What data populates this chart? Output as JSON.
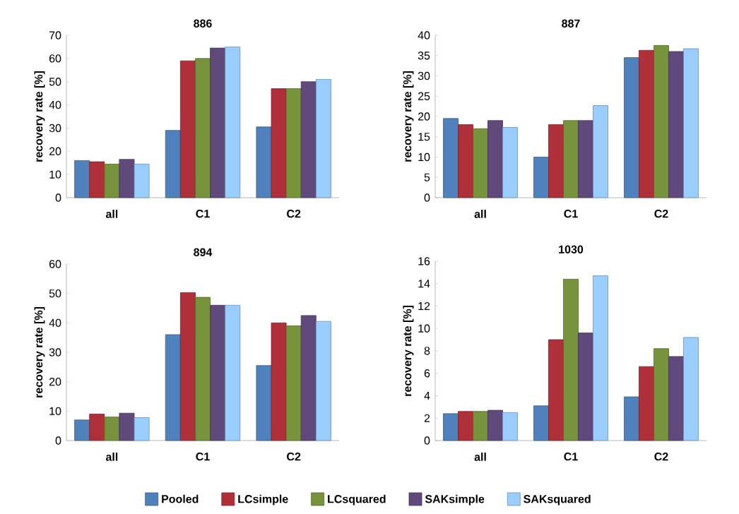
{
  "chart_data": [
    {
      "type": "bar",
      "title": "886",
      "ylabel": "recovery rate [%]",
      "categories": [
        "all",
        "C1",
        "C2"
      ],
      "ylim": [
        0,
        70
      ],
      "yticks": [
        0,
        10,
        20,
        30,
        40,
        50,
        60,
        70
      ],
      "series": [
        {
          "color": "#4f81bd",
          "values": [
            16,
            29,
            30.5
          ]
        },
        {
          "color": "#b0303a",
          "values": [
            15.5,
            59,
            47
          ]
        },
        {
          "color": "#77933c",
          "values": [
            14.5,
            60,
            47
          ]
        },
        {
          "color": "#604a7b",
          "values": [
            16.5,
            64.5,
            50
          ]
        },
        {
          "color": "#99ccff",
          "values": [
            14.5,
            65,
            51
          ]
        }
      ]
    },
    {
      "type": "bar",
      "title": "887",
      "ylabel": "recovery rate [%]",
      "categories": [
        "all",
        "C1",
        "C2"
      ],
      "ylim": [
        0,
        40
      ],
      "yticks": [
        0,
        5,
        10,
        15,
        20,
        25,
        30,
        35,
        40
      ],
      "series": [
        {
          "color": "#4f81bd",
          "values": [
            19.5,
            10,
            34.5
          ]
        },
        {
          "color": "#b0303a",
          "values": [
            18,
            18,
            36.3
          ]
        },
        {
          "color": "#77933c",
          "values": [
            17,
            19,
            37.5
          ]
        },
        {
          "color": "#604a7b",
          "values": [
            19,
            19,
            36
          ]
        },
        {
          "color": "#99ccff",
          "values": [
            17.3,
            22.7,
            36.7
          ]
        }
      ]
    },
    {
      "type": "bar",
      "title": "894",
      "ylabel": "recovery rate [%]",
      "categories": [
        "all",
        "C1",
        "C2"
      ],
      "ylim": [
        0,
        60
      ],
      "yticks": [
        0,
        10,
        20,
        30,
        40,
        50,
        60
      ],
      "series": [
        {
          "color": "#4f81bd",
          "values": [
            7,
            36,
            25.5
          ]
        },
        {
          "color": "#b0303a",
          "values": [
            9,
            50.3,
            40
          ]
        },
        {
          "color": "#77933c",
          "values": [
            8,
            48.7,
            39
          ]
        },
        {
          "color": "#604a7b",
          "values": [
            9.3,
            46,
            42.5
          ]
        },
        {
          "color": "#99ccff",
          "values": [
            7.8,
            46,
            40.5
          ]
        }
      ]
    },
    {
      "type": "bar",
      "title": "1030",
      "ylabel": "recovery rate [%]",
      "categories": [
        "all",
        "C1",
        "C2"
      ],
      "ylim": [
        0,
        16
      ],
      "yticks": [
        0,
        2,
        4,
        6,
        8,
        10,
        12,
        14,
        16
      ],
      "legend": "bottom",
      "series": [
        {
          "name": "Pooled",
          "color": "#4f81bd",
          "values": [
            2.4,
            3.1,
            3.9
          ]
        },
        {
          "name": "LCsimple",
          "color": "#b0303a",
          "values": [
            2.6,
            9,
            6.6
          ]
        },
        {
          "name": "LCsquared",
          "color": "#77933c",
          "values": [
            2.6,
            14.4,
            8.2
          ]
        },
        {
          "name": "SAKsimple",
          "color": "#604a7b",
          "values": [
            2.7,
            9.6,
            7.5
          ]
        },
        {
          "name": "SAKsquared",
          "color": "#99ccff",
          "values": [
            2.5,
            14.7,
            9.2
          ]
        }
      ]
    }
  ]
}
